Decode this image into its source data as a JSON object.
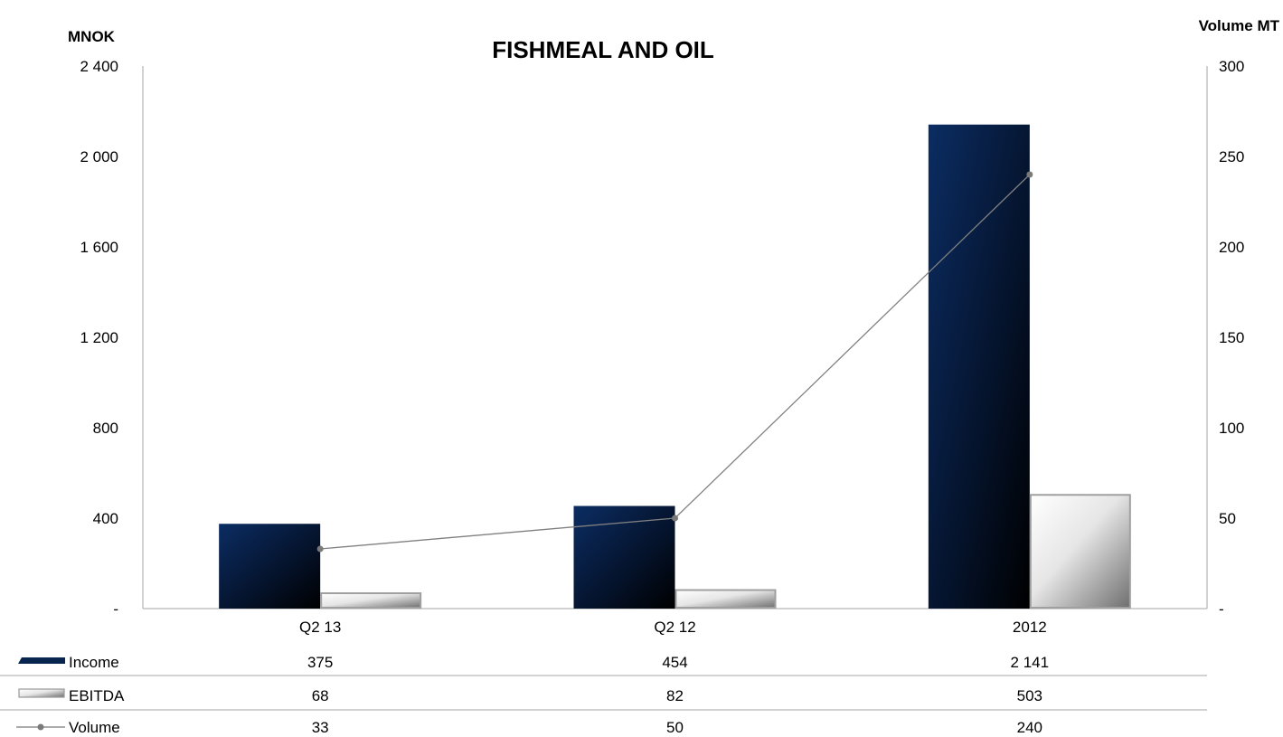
{
  "chart_data": {
    "type": "bar",
    "title": "FISHMEAL AND OIL",
    "y_left_label": "MNOK",
    "y_right_label": "Volume MT",
    "categories": [
      "Q2 13",
      "Q2 12",
      "2012"
    ],
    "y_left_ticks": [
      "-",
      "400",
      "800",
      "1 200",
      "1 600",
      "2 000",
      "2 400"
    ],
    "y_right_ticks": [
      "-",
      "50",
      "100",
      "150",
      "200",
      "250",
      "300"
    ],
    "ylim_left": [
      0,
      2400
    ],
    "ylim_right": [
      0,
      300
    ],
    "grid": false,
    "legend_placement": "data table below chart",
    "series": [
      {
        "name": "Income",
        "kind": "bar",
        "axis": "left",
        "values": [
          375,
          454,
          2141
        ],
        "labels": [
          "375",
          "454",
          "2 141"
        ],
        "color": "#0a2a5e"
      },
      {
        "name": "EBITDA",
        "kind": "bar",
        "axis": "left",
        "values": [
          68,
          82,
          503
        ],
        "labels": [
          "68",
          "82",
          "503"
        ],
        "color": "#9a9a9a"
      },
      {
        "name": "Volume",
        "kind": "line",
        "axis": "right",
        "values": [
          33,
          50,
          240
        ],
        "labels": [
          "33",
          "50",
          "240"
        ],
        "color": "#808080"
      }
    ]
  }
}
